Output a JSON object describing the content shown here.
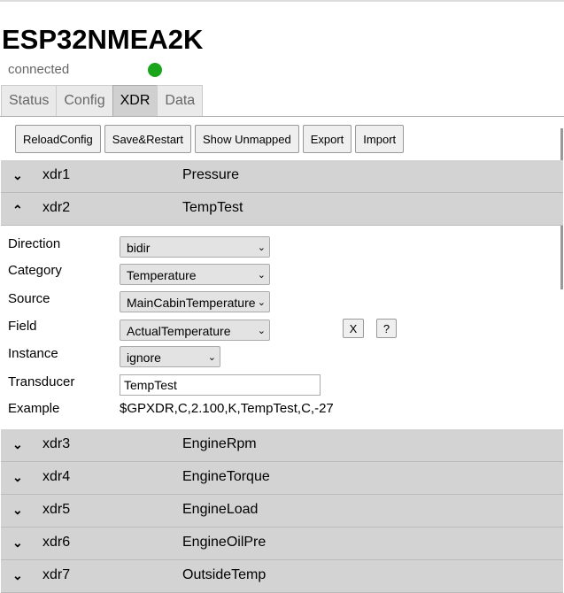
{
  "title": "ESP32NMEA2K",
  "status": {
    "text": "connected",
    "color": "#1aa61a"
  },
  "tabs": [
    {
      "label": "Status"
    },
    {
      "label": "Config"
    },
    {
      "label": "XDR",
      "active": true
    },
    {
      "label": "Data"
    }
  ],
  "toolbar": {
    "reload": "ReloadConfig",
    "save": "Save&Restart",
    "unmapped": "Show Unmapped",
    "export": "Export",
    "import": "Import"
  },
  "xdr": [
    {
      "id": "xdr1",
      "name": "Pressure",
      "expanded": false
    },
    {
      "id": "xdr2",
      "name": "TempTest",
      "expanded": true
    },
    {
      "id": "xdr3",
      "name": "EngineRpm"
    },
    {
      "id": "xdr4",
      "name": "EngineTorque"
    },
    {
      "id": "xdr5",
      "name": "EngineLoad"
    },
    {
      "id": "xdr6",
      "name": "EngineOilPre"
    },
    {
      "id": "xdr7",
      "name": "OutsideTemp"
    }
  ],
  "detail": {
    "direction": {
      "label": "Direction",
      "value": "bidir"
    },
    "category": {
      "label": "Category",
      "value": "Temperature"
    },
    "source": {
      "label": "Source",
      "value": "MainCabinTemperature"
    },
    "field": {
      "label": "Field",
      "value": "ActualTemperature"
    },
    "instance": {
      "label": "Instance",
      "value": "ignore"
    },
    "transducer": {
      "label": "Transducer",
      "value": "TempTest"
    },
    "example": {
      "label": "Example",
      "value": "$GPXDR,C,2.100,K,TempTest,C,-27"
    },
    "clear_label": "X",
    "help_label": "?"
  }
}
